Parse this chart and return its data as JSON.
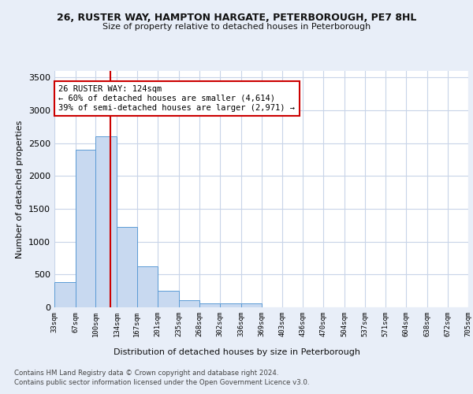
{
  "title_line1": "26, RUSTER WAY, HAMPTON HARGATE, PETERBOROUGH, PE7 8HL",
  "title_line2": "Size of property relative to detached houses in Peterborough",
  "xlabel": "Distribution of detached houses by size in Peterborough",
  "ylabel": "Number of detached properties",
  "footer_line1": "Contains HM Land Registry data © Crown copyright and database right 2024.",
  "footer_line2": "Contains public sector information licensed under the Open Government Licence v3.0.",
  "bar_color": "#c8d9f0",
  "bar_edge_color": "#5b9bd5",
  "grid_color": "#c8d4e8",
  "background_color": "#e8eef8",
  "plot_bg_color": "#ffffff",
  "vline_x": 124,
  "vline_color": "#cc0000",
  "annotation_text": "26 RUSTER WAY: 124sqm\n← 60% of detached houses are smaller (4,614)\n39% of semi-detached houses are larger (2,971) →",
  "annotation_box_color": "#ffffff",
  "annotation_box_edge": "#cc0000",
  "bin_edges": [
    33,
    67,
    100,
    134,
    167,
    201,
    235,
    268,
    302,
    336,
    369,
    403,
    436,
    470,
    504,
    537,
    571,
    604,
    638,
    672,
    705
  ],
  "bar_heights": [
    390,
    2400,
    2610,
    1230,
    630,
    250,
    110,
    65,
    60,
    55,
    0,
    0,
    0,
    0,
    0,
    0,
    0,
    0,
    0,
    0
  ],
  "ylim": [
    0,
    3600
  ],
  "yticks": [
    0,
    500,
    1000,
    1500,
    2000,
    2500,
    3000,
    3500
  ]
}
